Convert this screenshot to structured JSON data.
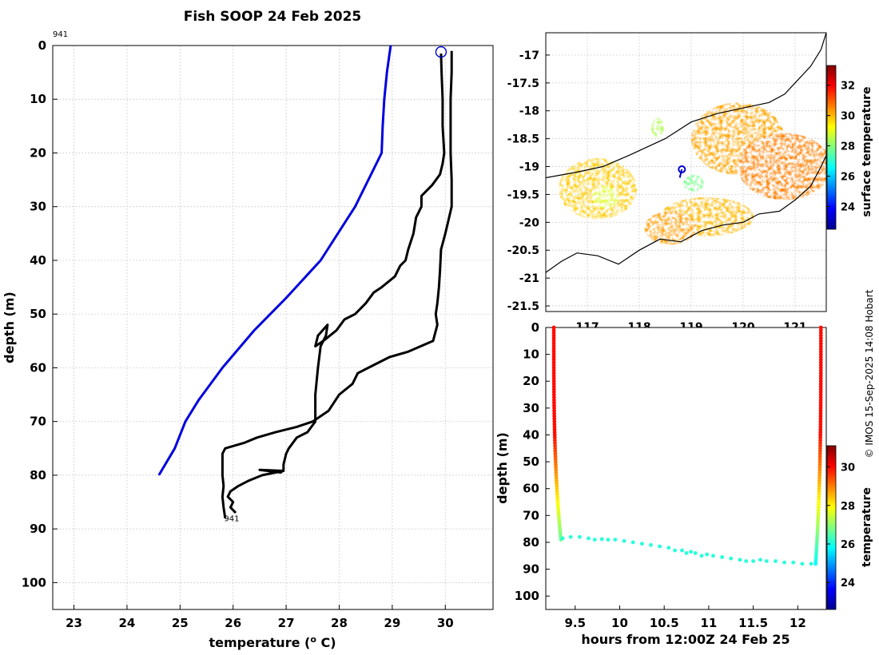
{
  "figure": {
    "title": "Fish SOOP 24 Feb 2025",
    "credit": "© IMOS 15-Sep-2025 14:08 Hobart"
  },
  "chart_data": [
    {
      "id": "profile",
      "type": "line",
      "title": "Fish SOOP 24 Feb 2025",
      "xlabel": "temperature (",
      "xlabel_sup": "o",
      "xlabel_tail": " C)",
      "ylabel": "depth (m)",
      "xlim": [
        22.6,
        30.9
      ],
      "ylim": [
        0,
        105
      ],
      "y_reversed": true,
      "grid": true,
      "x_ticks": [
        23,
        24,
        25,
        26,
        27,
        28,
        29,
        30
      ],
      "y_ticks": [
        0,
        10,
        20,
        30,
        40,
        50,
        60,
        70,
        80,
        90,
        100
      ],
      "top_label": "941",
      "bottom_label": "941",
      "bottom_label_pos": [
        25.95,
        88
      ],
      "marker": {
        "name": "profile-location-marker",
        "x": 29.92,
        "y": 1.2,
        "color": "#0000cc"
      },
      "series": [
        {
          "name": "climatology",
          "color": "#0000dd",
          "points": [
            [
              28.97,
              0
            ],
            [
              28.9,
              5
            ],
            [
              28.85,
              10
            ],
            [
              28.82,
              15
            ],
            [
              28.8,
              20
            ],
            [
              28.3,
              30
            ],
            [
              27.65,
              40
            ],
            [
              27.0,
              47
            ],
            [
              26.4,
              53
            ],
            [
              25.8,
              60
            ],
            [
              25.35,
              66
            ],
            [
              25.1,
              70
            ],
            [
              24.9,
              75
            ],
            [
              24.6,
              80
            ]
          ]
        },
        {
          "name": "downcast",
          "color": "#000000",
          "points": [
            [
              30.12,
              1
            ],
            [
              30.12,
              5
            ],
            [
              30.1,
              10
            ],
            [
              30.1,
              15
            ],
            [
              30.1,
              20
            ],
            [
              30.12,
              25
            ],
            [
              30.12,
              30
            ],
            [
              30.0,
              35
            ],
            [
              29.92,
              38
            ],
            [
              29.9,
              42
            ],
            [
              29.88,
              45
            ],
            [
              29.85,
              48
            ],
            [
              29.82,
              50
            ],
            [
              29.85,
              52
            ],
            [
              29.77,
              55
            ],
            [
              29.3,
              57
            ],
            [
              28.95,
              58
            ],
            [
              28.55,
              60
            ],
            [
              28.35,
              61
            ],
            [
              28.25,
              63
            ],
            [
              28.0,
              65
            ],
            [
              27.8,
              68
            ],
            [
              27.5,
              70
            ],
            [
              27.2,
              71
            ],
            [
              26.8,
              72
            ],
            [
              26.45,
              73
            ],
            [
              26.2,
              74
            ],
            [
              25.85,
              75
            ],
            [
              25.8,
              76
            ],
            [
              25.8,
              78
            ],
            [
              25.8,
              80
            ],
            [
              25.82,
              82
            ],
            [
              25.8,
              84
            ],
            [
              25.82,
              86
            ],
            [
              25.85,
              88
            ]
          ]
        },
        {
          "name": "upcast",
          "color": "#000000",
          "points": [
            [
              26.05,
              87
            ],
            [
              25.95,
              86
            ],
            [
              26.0,
              85
            ],
            [
              25.9,
              84
            ],
            [
              25.95,
              83
            ],
            [
              26.1,
              82
            ],
            [
              26.3,
              81
            ],
            [
              26.55,
              80
            ],
            [
              26.95,
              79.2
            ],
            [
              26.5,
              79
            ],
            [
              26.9,
              79.5
            ],
            [
              26.95,
              79
            ],
            [
              26.95,
              78
            ],
            [
              27.0,
              76
            ],
            [
              27.05,
              75
            ],
            [
              27.2,
              73
            ],
            [
              27.4,
              72
            ],
            [
              27.55,
              70
            ],
            [
              27.55,
              65
            ],
            [
              27.6,
              60
            ],
            [
              27.65,
              56
            ],
            [
              27.75,
              54
            ],
            [
              27.78,
              52
            ],
            [
              27.6,
              54
            ],
            [
              27.55,
              56
            ],
            [
              27.7,
              55
            ],
            [
              27.95,
              53
            ],
            [
              28.1,
              51
            ],
            [
              28.3,
              50
            ],
            [
              28.5,
              48
            ],
            [
              28.65,
              46
            ],
            [
              28.8,
              45
            ],
            [
              29.05,
              43
            ],
            [
              29.15,
              41
            ],
            [
              29.25,
              40
            ],
            [
              29.3,
              38
            ],
            [
              29.4,
              35
            ],
            [
              29.45,
              32
            ],
            [
              29.55,
              30
            ],
            [
              29.55,
              28
            ],
            [
              29.75,
              26
            ],
            [
              29.9,
              24
            ],
            [
              29.95,
              22
            ],
            [
              29.98,
              20
            ],
            [
              29.95,
              15
            ],
            [
              29.95,
              10
            ],
            [
              29.93,
              5
            ],
            [
              29.92,
              1.5
            ]
          ]
        }
      ]
    },
    {
      "id": "map",
      "type": "heatmap",
      "xlim": [
        116.2,
        121.6
      ],
      "ylim": [
        -21.6,
        -16.6
      ],
      "x_ticks": [
        117,
        118,
        119,
        120,
        121
      ],
      "y_ticks": [
        -17,
        -17.5,
        -18,
        -18.5,
        -19,
        -19.5,
        -20,
        -20.5,
        -21,
        -21.5
      ],
      "y_tick_labels": [
        "-17",
        "-17.5",
        "-18",
        "-18.5",
        "-19",
        "-19.5",
        "-20",
        "-20.5",
        "-21",
        "-21.5"
      ],
      "colorbar": {
        "label": "surface temperature",
        "min": 22.5,
        "max": 33.3,
        "ticks": [
          24,
          26,
          28,
          30,
          32
        ]
      },
      "sst_blobs": [
        {
          "lon": 117.2,
          "lat": -19.4,
          "rlon": 0.75,
          "rlat": 0.55,
          "temp": 29.8
        },
        {
          "lon": 117.35,
          "lat": -19.55,
          "rlon": 0.25,
          "rlat": 0.2,
          "temp": 28.9
        },
        {
          "lon": 119.9,
          "lat": -18.5,
          "rlon": 0.9,
          "rlat": 0.65,
          "temp": 30.2
        },
        {
          "lon": 120.8,
          "lat": -19.0,
          "rlon": 0.9,
          "rlat": 0.6,
          "temp": 30.6
        },
        {
          "lon": 119.3,
          "lat": -19.9,
          "rlon": 0.9,
          "rlat": 0.35,
          "temp": 30.0
        },
        {
          "lon": 118.6,
          "lat": -20.1,
          "rlon": 0.5,
          "rlat": 0.3,
          "temp": 30.3
        },
        {
          "lon": 119.05,
          "lat": -19.3,
          "rlon": 0.2,
          "rlat": 0.15,
          "temp": 27.8
        },
        {
          "lon": 118.35,
          "lat": -18.3,
          "rlon": 0.12,
          "rlat": 0.18,
          "temp": 28.4
        }
      ],
      "coastline": [
        [
          116.2,
          -20.9
        ],
        [
          116.5,
          -20.7
        ],
        [
          116.8,
          -20.55
        ],
        [
          117.2,
          -20.6
        ],
        [
          117.6,
          -20.75
        ],
        [
          118.0,
          -20.5
        ],
        [
          118.4,
          -20.3
        ],
        [
          118.8,
          -20.35
        ],
        [
          119.2,
          -20.15
        ],
        [
          119.6,
          -20.05
        ],
        [
          120.0,
          -20.0
        ],
        [
          120.3,
          -19.85
        ],
        [
          120.7,
          -19.8
        ],
        [
          121.0,
          -19.6
        ],
        [
          121.3,
          -19.35
        ],
        [
          121.5,
          -19.0
        ],
        [
          121.6,
          -18.8
        ]
      ],
      "coastline2": [
        [
          121.6,
          -16.6
        ],
        [
          121.5,
          -16.9
        ],
        [
          121.3,
          -17.2
        ],
        [
          121.0,
          -17.5
        ],
        [
          120.8,
          -17.7
        ],
        [
          120.5,
          -17.85
        ],
        [
          120.0,
          -17.95
        ],
        [
          119.5,
          -18.05
        ],
        [
          119.0,
          -18.2
        ],
        [
          118.5,
          -18.5
        ],
        [
          117.8,
          -18.8
        ],
        [
          117.3,
          -19.0
        ],
        [
          116.8,
          -19.1
        ],
        [
          116.2,
          -19.2
        ]
      ],
      "ship_track": [
        [
          118.82,
          -19.05
        ],
        [
          118.8,
          -19.12
        ],
        [
          118.78,
          -19.2
        ]
      ],
      "ship_position": {
        "lon": 118.82,
        "lat": -19.05
      },
      "ship_color": "#0000cc"
    },
    {
      "id": "transect",
      "type": "scatter",
      "xlabel": "hours from 12:00Z 24 Feb 25",
      "ylabel": "depth (m)",
      "xlim": [
        9.17,
        12.32
      ],
      "ylim": [
        0,
        105
      ],
      "y_reversed": true,
      "x_ticks": [
        9.5,
        10,
        10.5,
        11,
        11.5,
        12
      ],
      "x_tick_labels": [
        "9.5",
        "10",
        "10.5",
        "11",
        "11.5",
        "12"
      ],
      "y_ticks": [
        0,
        10,
        20,
        30,
        40,
        50,
        60,
        70,
        80,
        90,
        100
      ],
      "colorbar": {
        "label": "temperature",
        "min": 22.6,
        "max": 31.1,
        "ticks": [
          24,
          26,
          28,
          30
        ]
      },
      "down_profile": {
        "time_start": 9.26,
        "time_end": 9.34,
        "depth_max": 79
      },
      "up_profile": {
        "time_start": 12.2,
        "time_end": 12.26,
        "depth_max": 88
      },
      "bottom_points": [
        [
          9.36,
          78.5
        ],
        [
          9.45,
          78
        ],
        [
          9.55,
          78
        ],
        [
          9.65,
          78.5
        ],
        [
          9.72,
          79
        ],
        [
          9.8,
          78.8
        ],
        [
          9.87,
          79
        ],
        [
          9.95,
          79
        ],
        [
          10.05,
          79.5
        ],
        [
          10.15,
          80
        ],
        [
          10.25,
          80.5
        ],
        [
          10.35,
          81
        ],
        [
          10.45,
          81.5
        ],
        [
          10.55,
          82
        ],
        [
          10.62,
          83
        ],
        [
          10.7,
          83
        ],
        [
          10.75,
          84
        ],
        [
          10.8,
          83.5
        ],
        [
          10.85,
          84
        ],
        [
          10.92,
          85
        ],
        [
          10.98,
          84.5
        ],
        [
          11.05,
          85
        ],
        [
          11.15,
          85.5
        ],
        [
          11.25,
          86
        ],
        [
          11.35,
          86.5
        ],
        [
          11.42,
          87
        ],
        [
          11.5,
          87
        ],
        [
          11.58,
          86.5
        ],
        [
          11.65,
          87
        ],
        [
          11.75,
          87
        ],
        [
          11.85,
          87.5
        ],
        [
          11.95,
          87.5
        ],
        [
          12.05,
          88
        ],
        [
          12.15,
          88
        ]
      ],
      "bottom_temp": 26.1,
      "surface_temp": 29.95
    }
  ]
}
